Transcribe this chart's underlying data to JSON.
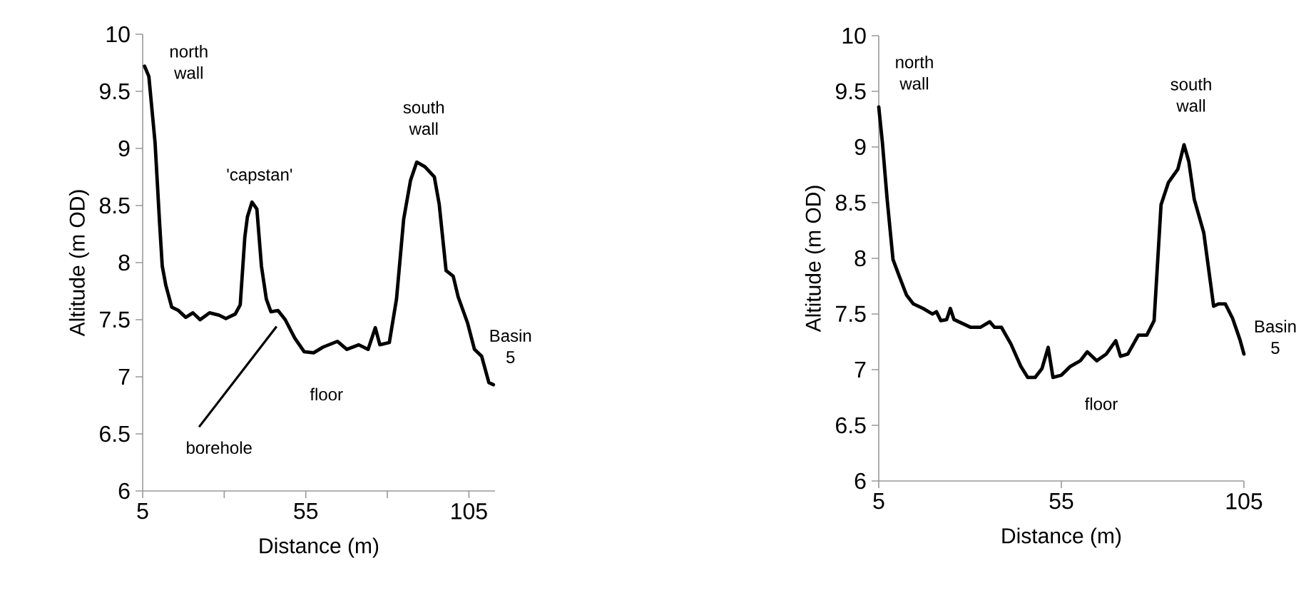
{
  "chart_data": [
    {
      "type": "line",
      "xlabel": "Distance (m)",
      "ylabel": "Altitude (m OD)",
      "xlim": [
        5,
        113
      ],
      "ylim": [
        6,
        10
      ],
      "xticks": [
        5,
        {
          "value": 30,
          "label": null
        },
        55,
        {
          "value": 80,
          "label": null
        },
        105
      ],
      "yticks": [
        6,
        6.5,
        7,
        7.5,
        8,
        8.5,
        9,
        9.5,
        10
      ],
      "marker": "none",
      "line_style": "solid",
      "series": [
        {
          "color": "#000000",
          "x": [
            5.6,
            6.9,
            8.8,
            10.2,
            11.0,
            12.1,
            13.9,
            16.0,
            18.2,
            20.4,
            22.6,
            25.5,
            28.4,
            30.5,
            33.4,
            34.9,
            36.3,
            37.1,
            38.5,
            40.0,
            41.4,
            42.9,
            44.3,
            46.5,
            48.7,
            51.6,
            54.5,
            57.4,
            60.3,
            64.7,
            67.6,
            71.2,
            74.1,
            76.3,
            77.7,
            80.6,
            82.8,
            85.0,
            87.1,
            89.0,
            91.5,
            94.4,
            95.9,
            98.0,
            100.2,
            101.7,
            104.6,
            106.7,
            108.9,
            111.1,
            112.5
          ],
          "values": [
            9.72,
            9.63,
            9.05,
            8.34,
            7.97,
            7.8,
            7.61,
            7.58,
            7.52,
            7.56,
            7.5,
            7.56,
            7.54,
            7.51,
            7.55,
            7.63,
            8.22,
            8.4,
            8.53,
            8.47,
            7.97,
            7.68,
            7.57,
            7.58,
            7.5,
            7.34,
            7.22,
            7.21,
            7.26,
            7.31,
            7.24,
            7.28,
            7.24,
            7.43,
            7.28,
            7.3,
            7.68,
            8.38,
            8.72,
            8.88,
            8.84,
            8.75,
            8.51,
            7.93,
            7.88,
            7.7,
            7.47,
            7.24,
            7.18,
            6.95,
            6.93
          ]
        }
      ],
      "annotations": [
        {
          "text": "north wall",
          "x": 5.6,
          "y": 9.72
        },
        {
          "text": "'capstan'",
          "x": 38.5,
          "y": 8.53
        },
        {
          "text": "south wall",
          "x": 89.0,
          "y": 8.88
        },
        {
          "text": "Basin 5",
          "x": 112.5,
          "y": 6.93
        },
        {
          "text": "floor",
          "x": 57.4,
          "y": 7.21
        },
        "borehole"
      ]
    },
    {
      "type": "line",
      "xlabel": "Distance (m)",
      "ylabel": "Altitude (m OD)",
      "xlim": [
        5,
        105
      ],
      "ylim": [
        6,
        10
      ],
      "xticks": [
        5,
        55,
        105
      ],
      "yticks": [
        6,
        6.5,
        7,
        7.5,
        8,
        8.5,
        9,
        9.5,
        10
      ],
      "marker": "none",
      "line_style": "solid",
      "series": [
        {
          "color": "#000000",
          "x": [
            5.0,
            6.0,
            7.3,
            8.9,
            10.6,
            12.6,
            14.5,
            17.1,
            19.7,
            20.8,
            22.0,
            23.6,
            24.6,
            25.6,
            27.6,
            30.2,
            32.8,
            35.4,
            36.7,
            38.6,
            41.2,
            43.9,
            45.8,
            47.8,
            49.7,
            51.4,
            52.7,
            55.0,
            57.5,
            60.2,
            62.1,
            64.7,
            67.3,
            69.9,
            71.2,
            73.2,
            76.1,
            78.4,
            80.4,
            82.3,
            84.3,
            86.9,
            88.6,
            89.9,
            91.4,
            94.0,
            96.7,
            98.0,
            99.9,
            101.9,
            103.9,
            105.0
          ],
          "values": [
            9.36,
            9.04,
            8.53,
            7.99,
            7.84,
            7.67,
            7.59,
            7.55,
            7.5,
            7.52,
            7.44,
            7.45,
            7.55,
            7.45,
            7.42,
            7.38,
            7.38,
            7.43,
            7.38,
            7.38,
            7.23,
            7.03,
            6.93,
            6.93,
            7.01,
            7.2,
            6.93,
            6.95,
            7.03,
            7.08,
            7.16,
            7.08,
            7.14,
            7.26,
            7.12,
            7.14,
            7.31,
            7.31,
            7.44,
            8.48,
            8.68,
            8.8,
            9.02,
            8.87,
            8.53,
            8.23,
            7.57,
            7.59,
            7.59,
            7.46,
            7.27,
            7.14
          ]
        }
      ],
      "annotations": [
        {
          "text": "north wall",
          "x": 5.0,
          "y": 9.36
        },
        {
          "text": "south wall",
          "x": 88.6,
          "y": 9.02
        },
        {
          "text": "Basin 5",
          "x": 105.0,
          "y": 7.14
        },
        {
          "text": "floor",
          "x": 55.0,
          "y": 6.95
        }
      ]
    }
  ]
}
